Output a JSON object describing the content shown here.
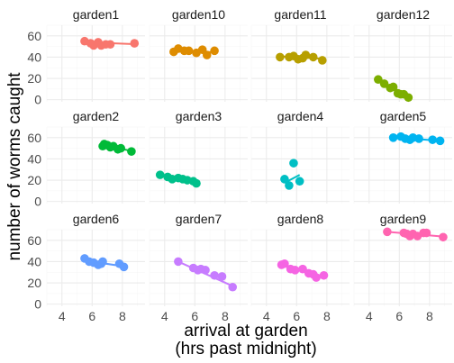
{
  "chart_data": {
    "type": "scatter",
    "facet_layout": {
      "rows": 3,
      "cols": 4
    },
    "xlabel_lines": [
      "arrival at garden",
      "(hrs past midnight)"
    ],
    "ylabel": "number of worms caught",
    "xlim": [
      3.0,
      9.5
    ],
    "ylim": [
      -2,
      70
    ],
    "x_ticks": [
      4,
      6,
      8
    ],
    "y_ticks": [
      0,
      20,
      40,
      60
    ],
    "grid": true,
    "legend": "none",
    "panels": [
      {
        "name": "garden1",
        "color": "#F8766D",
        "points": [
          [
            5.5,
            55
          ],
          [
            5.9,
            53
          ],
          [
            6.1,
            51
          ],
          [
            6.4,
            54
          ],
          [
            6.6,
            51
          ],
          [
            6.9,
            52
          ],
          [
            7.2,
            52
          ],
          [
            8.8,
            53
          ]
        ],
        "fit": [
          [
            5.5,
            54.2
          ],
          [
            8.8,
            52.2
          ]
        ]
      },
      {
        "name": "garden10",
        "color": "#DE8C00",
        "points": [
          [
            4.6,
            45
          ],
          [
            4.9,
            48
          ],
          [
            5.3,
            46
          ],
          [
            5.6,
            46
          ],
          [
            6.1,
            44
          ],
          [
            6.5,
            47
          ],
          [
            6.8,
            42
          ],
          [
            7.3,
            46
          ]
        ],
        "fit": [
          [
            4.6,
            46.5
          ],
          [
            7.3,
            44.5
          ]
        ]
      },
      {
        "name": "garden11",
        "color": "#B79F00",
        "points": [
          [
            4.9,
            40
          ],
          [
            5.5,
            40
          ],
          [
            5.8,
            41
          ],
          [
            6.1,
            38
          ],
          [
            6.4,
            39
          ],
          [
            6.6,
            42
          ],
          [
            7.1,
            40
          ],
          [
            7.7,
            37
          ]
        ],
        "fit": [
          [
            4.9,
            40.7
          ],
          [
            7.7,
            38.5
          ]
        ]
      },
      {
        "name": "garden12",
        "color": "#7CAE00",
        "points": [
          [
            4.6,
            19
          ],
          [
            5.0,
            15
          ],
          [
            5.4,
            11
          ],
          [
            5.6,
            12
          ],
          [
            5.9,
            6
          ],
          [
            6.1,
            5
          ],
          [
            6.3,
            5
          ],
          [
            6.6,
            2
          ]
        ],
        "fit": [
          [
            4.6,
            19
          ],
          [
            6.6,
            2.5
          ]
        ]
      },
      {
        "name": "garden2",
        "color": "#00BA38",
        "points": [
          [
            6.7,
            52
          ],
          [
            6.8,
            54
          ],
          [
            7.0,
            53
          ],
          [
            7.2,
            51
          ],
          [
            7.4,
            52
          ],
          [
            7.7,
            49
          ],
          [
            7.9,
            50
          ],
          [
            8.6,
            47
          ]
        ],
        "fit": [
          [
            6.7,
            53
          ],
          [
            8.6,
            47.5
          ]
        ]
      },
      {
        "name": "garden3",
        "color": "#00C08B",
        "points": [
          [
            3.7,
            25
          ],
          [
            4.2,
            23
          ],
          [
            4.5,
            21
          ],
          [
            4.9,
            22
          ],
          [
            5.2,
            21
          ],
          [
            5.5,
            20
          ],
          [
            5.9,
            19
          ],
          [
            6.1,
            17
          ]
        ],
        "fit": [
          [
            3.7,
            24.5
          ],
          [
            6.1,
            17.5
          ]
        ]
      },
      {
        "name": "garden4",
        "color": "#00BFC4",
        "points": [
          [
            5.2,
            21
          ],
          [
            5.5,
            15
          ],
          [
            5.8,
            36
          ],
          [
            6.2,
            19
          ]
        ],
        "fit": [
          [
            5.2,
            17.5
          ],
          [
            6.2,
            25
          ]
        ]
      },
      {
        "name": "garden5",
        "color": "#00B4F0",
        "points": [
          [
            5.6,
            60
          ],
          [
            6.1,
            61
          ],
          [
            6.4,
            59
          ],
          [
            6.7,
            58
          ],
          [
            6.9,
            60
          ],
          [
            7.3,
            59
          ],
          [
            8.2,
            58
          ],
          [
            8.7,
            57
          ]
        ],
        "fit": [
          [
            5.6,
            60.5
          ],
          [
            8.7,
            57
          ]
        ]
      },
      {
        "name": "garden6",
        "color": "#619CFF",
        "points": [
          [
            5.5,
            43
          ],
          [
            5.8,
            40
          ],
          [
            6.1,
            39
          ],
          [
            6.4,
            37
          ],
          [
            6.6,
            38
          ],
          [
            6.7,
            40
          ],
          [
            7.8,
            38
          ],
          [
            8.1,
            35
          ]
        ],
        "fit": [
          [
            5.5,
            41
          ],
          [
            8.1,
            35.5
          ]
        ]
      },
      {
        "name": "garden7",
        "color": "#C77CFF",
        "points": [
          [
            4.9,
            40
          ],
          [
            5.9,
            34
          ],
          [
            6.2,
            32
          ],
          [
            6.4,
            33
          ],
          [
            6.7,
            32
          ],
          [
            7.3,
            27
          ],
          [
            7.8,
            26
          ],
          [
            8.5,
            16
          ]
        ],
        "fit": [
          [
            4.9,
            40
          ],
          [
            8.5,
            17
          ]
        ]
      },
      {
        "name": "garden8",
        "color": "#F564E3",
        "points": [
          [
            5.0,
            37
          ],
          [
            5.2,
            38
          ],
          [
            5.6,
            33
          ],
          [
            5.9,
            32
          ],
          [
            6.4,
            33
          ],
          [
            6.8,
            29
          ],
          [
            7.1,
            28
          ],
          [
            7.3,
            25
          ],
          [
            7.8,
            27
          ]
        ],
        "fit": [
          [
            5.0,
            37.5
          ],
          [
            7.8,
            26
          ]
        ]
      },
      {
        "name": "garden9",
        "color": "#FF64B0",
        "points": [
          [
            5.2,
            68
          ],
          [
            6.3,
            67
          ],
          [
            6.5,
            66
          ],
          [
            6.7,
            64
          ],
          [
            6.9,
            66
          ],
          [
            7.2,
            64
          ],
          [
            7.6,
            67
          ],
          [
            7.8,
            67
          ],
          [
            8.9,
            63
          ]
        ],
        "fit": [
          [
            5.2,
            68
          ],
          [
            8.9,
            63.5
          ]
        ]
      }
    ]
  }
}
